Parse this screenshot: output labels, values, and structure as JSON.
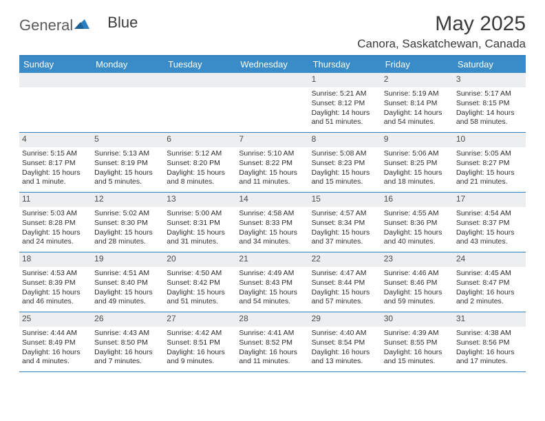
{
  "logo": {
    "text1": "General",
    "text2": "Blue"
  },
  "title": "May 2025",
  "location": "Canora, Saskatchewan, Canada",
  "colors": {
    "header_bar": "#3a8cc9",
    "border": "#2f7fbf",
    "daynum_bg": "#eceeef",
    "text": "#2d2d2d"
  },
  "dow": [
    "Sunday",
    "Monday",
    "Tuesday",
    "Wednesday",
    "Thursday",
    "Friday",
    "Saturday"
  ],
  "weeks": [
    [
      null,
      null,
      null,
      null,
      {
        "n": "1",
        "sr": "5:21 AM",
        "ss": "8:12 PM",
        "dl": "14 hours and 51 minutes."
      },
      {
        "n": "2",
        "sr": "5:19 AM",
        "ss": "8:14 PM",
        "dl": "14 hours and 54 minutes."
      },
      {
        "n": "3",
        "sr": "5:17 AM",
        "ss": "8:15 PM",
        "dl": "14 hours and 58 minutes."
      }
    ],
    [
      {
        "n": "4",
        "sr": "5:15 AM",
        "ss": "8:17 PM",
        "dl": "15 hours and 1 minute."
      },
      {
        "n": "5",
        "sr": "5:13 AM",
        "ss": "8:19 PM",
        "dl": "15 hours and 5 minutes."
      },
      {
        "n": "6",
        "sr": "5:12 AM",
        "ss": "8:20 PM",
        "dl": "15 hours and 8 minutes."
      },
      {
        "n": "7",
        "sr": "5:10 AM",
        "ss": "8:22 PM",
        "dl": "15 hours and 11 minutes."
      },
      {
        "n": "8",
        "sr": "5:08 AM",
        "ss": "8:23 PM",
        "dl": "15 hours and 15 minutes."
      },
      {
        "n": "9",
        "sr": "5:06 AM",
        "ss": "8:25 PM",
        "dl": "15 hours and 18 minutes."
      },
      {
        "n": "10",
        "sr": "5:05 AM",
        "ss": "8:27 PM",
        "dl": "15 hours and 21 minutes."
      }
    ],
    [
      {
        "n": "11",
        "sr": "5:03 AM",
        "ss": "8:28 PM",
        "dl": "15 hours and 24 minutes."
      },
      {
        "n": "12",
        "sr": "5:02 AM",
        "ss": "8:30 PM",
        "dl": "15 hours and 28 minutes."
      },
      {
        "n": "13",
        "sr": "5:00 AM",
        "ss": "8:31 PM",
        "dl": "15 hours and 31 minutes."
      },
      {
        "n": "14",
        "sr": "4:58 AM",
        "ss": "8:33 PM",
        "dl": "15 hours and 34 minutes."
      },
      {
        "n": "15",
        "sr": "4:57 AM",
        "ss": "8:34 PM",
        "dl": "15 hours and 37 minutes."
      },
      {
        "n": "16",
        "sr": "4:55 AM",
        "ss": "8:36 PM",
        "dl": "15 hours and 40 minutes."
      },
      {
        "n": "17",
        "sr": "4:54 AM",
        "ss": "8:37 PM",
        "dl": "15 hours and 43 minutes."
      }
    ],
    [
      {
        "n": "18",
        "sr": "4:53 AM",
        "ss": "8:39 PM",
        "dl": "15 hours and 46 minutes."
      },
      {
        "n": "19",
        "sr": "4:51 AM",
        "ss": "8:40 PM",
        "dl": "15 hours and 49 minutes."
      },
      {
        "n": "20",
        "sr": "4:50 AM",
        "ss": "8:42 PM",
        "dl": "15 hours and 51 minutes."
      },
      {
        "n": "21",
        "sr": "4:49 AM",
        "ss": "8:43 PM",
        "dl": "15 hours and 54 minutes."
      },
      {
        "n": "22",
        "sr": "4:47 AM",
        "ss": "8:44 PM",
        "dl": "15 hours and 57 minutes."
      },
      {
        "n": "23",
        "sr": "4:46 AM",
        "ss": "8:46 PM",
        "dl": "15 hours and 59 minutes."
      },
      {
        "n": "24",
        "sr": "4:45 AM",
        "ss": "8:47 PM",
        "dl": "16 hours and 2 minutes."
      }
    ],
    [
      {
        "n": "25",
        "sr": "4:44 AM",
        "ss": "8:49 PM",
        "dl": "16 hours and 4 minutes."
      },
      {
        "n": "26",
        "sr": "4:43 AM",
        "ss": "8:50 PM",
        "dl": "16 hours and 7 minutes."
      },
      {
        "n": "27",
        "sr": "4:42 AM",
        "ss": "8:51 PM",
        "dl": "16 hours and 9 minutes."
      },
      {
        "n": "28",
        "sr": "4:41 AM",
        "ss": "8:52 PM",
        "dl": "16 hours and 11 minutes."
      },
      {
        "n": "29",
        "sr": "4:40 AM",
        "ss": "8:54 PM",
        "dl": "16 hours and 13 minutes."
      },
      {
        "n": "30",
        "sr": "4:39 AM",
        "ss": "8:55 PM",
        "dl": "16 hours and 15 minutes."
      },
      {
        "n": "31",
        "sr": "4:38 AM",
        "ss": "8:56 PM",
        "dl": "16 hours and 17 minutes."
      }
    ]
  ],
  "labels": {
    "sunrise": "Sunrise:",
    "sunset": "Sunset:",
    "daylight": "Daylight:"
  }
}
